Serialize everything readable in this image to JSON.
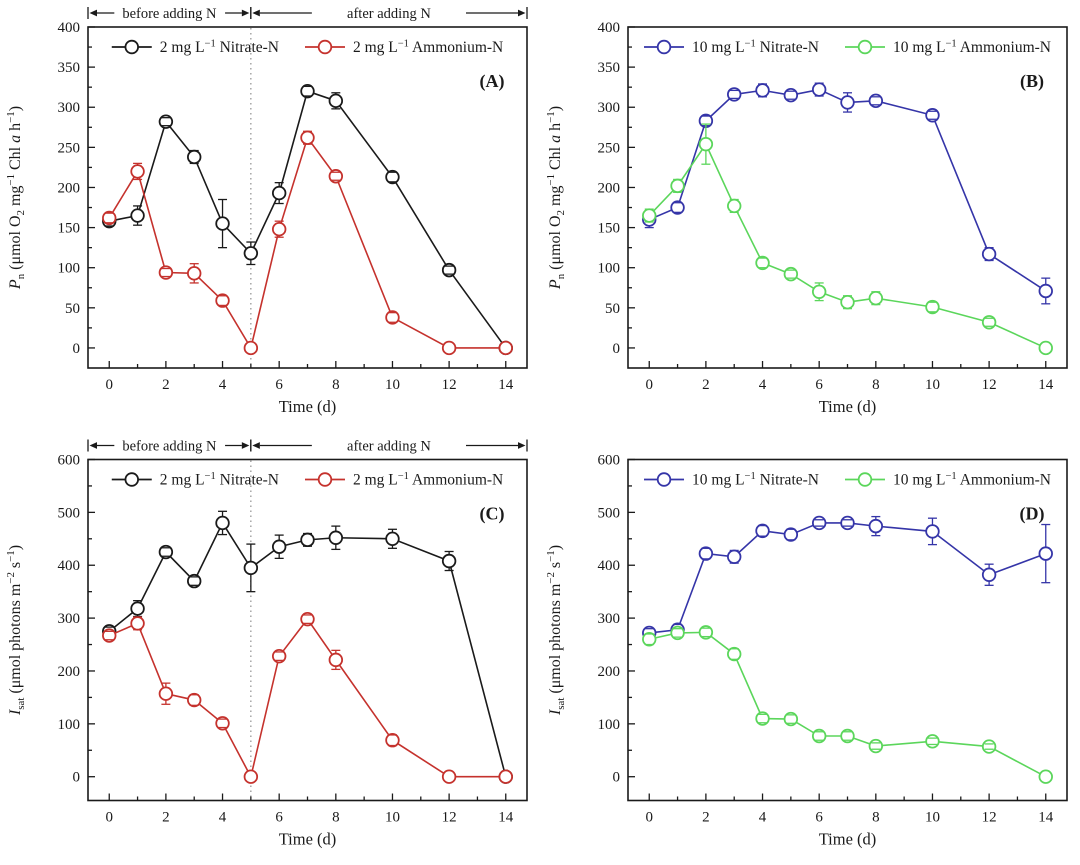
{
  "figure": {
    "background": "#ffffff",
    "panel_count": 4
  },
  "chart_data": [
    {
      "panel": "A",
      "panel_label": "(A)",
      "type": "line",
      "xlabel": "Time (d)",
      "ylabel_segments": [
        {
          "text": "P",
          "italic": true
        },
        {
          "text": "n",
          "sub": true
        },
        {
          "text": " (μmol O"
        },
        {
          "text": "2",
          "sub": true
        },
        {
          "text": " mg"
        },
        {
          "text": "−1",
          "sup": true
        },
        {
          "text": " Chl "
        },
        {
          "text": "a",
          "italic": true
        },
        {
          "text": " h"
        },
        {
          "text": "−1",
          "sup": true
        },
        {
          "text": ")"
        }
      ],
      "x": [
        0,
        1,
        2,
        3,
        4,
        5,
        6,
        7,
        8,
        10,
        12,
        14
      ],
      "xlim": [
        -0.75,
        14.75
      ],
      "ylim": [
        -25,
        400
      ],
      "x_major_step": 2,
      "x_minor_step": 1,
      "y_major_step": 50,
      "y_minor_step": 25,
      "grid": false,
      "legend_position": "top-center-inside",
      "annotation": {
        "before": "before adding N",
        "after": "after adding N",
        "divider_x": 5
      },
      "divider_x": 5,
      "series": [
        {
          "key": "nitrate",
          "color": "#1a1a1a",
          "name_segments": [
            {
              "text": "2 mg L"
            },
            {
              "text": "−1",
              "sup": true
            },
            {
              "text": " Nitrate-N"
            }
          ],
          "values": [
            158,
            165,
            282,
            238,
            155,
            118,
            193,
            320,
            308,
            213,
            97,
            0
          ],
          "errors": [
            6,
            12,
            5,
            8,
            30,
            14,
            13,
            6,
            10,
            6,
            5,
            0
          ]
        },
        {
          "key": "ammonium",
          "color": "#c5322d",
          "name_segments": [
            {
              "text": "2 mg L"
            },
            {
              "text": "−1",
              "sup": true
            },
            {
              "text": " Ammonium-N"
            }
          ],
          "values": [
            162,
            220,
            94,
            93,
            59,
            0,
            148,
            262,
            214,
            38,
            0,
            0
          ],
          "errors": [
            6,
            10,
            5,
            12,
            6,
            0,
            10,
            8,
            5,
            6,
            0,
            0
          ]
        }
      ]
    },
    {
      "panel": "B",
      "panel_label": "(B)",
      "type": "line",
      "xlabel": "Time (d)",
      "ylabel_segments": [
        {
          "text": "P",
          "italic": true
        },
        {
          "text": "n",
          "sub": true
        },
        {
          "text": " (μmol O"
        },
        {
          "text": "2",
          "sub": true
        },
        {
          "text": " mg"
        },
        {
          "text": "−1",
          "sup": true
        },
        {
          "text": " Chl "
        },
        {
          "text": "a",
          "italic": true
        },
        {
          "text": " h"
        },
        {
          "text": "−1",
          "sup": true
        },
        {
          "text": ")"
        }
      ],
      "x": [
        0,
        1,
        2,
        3,
        4,
        5,
        6,
        7,
        8,
        10,
        12,
        14
      ],
      "xlim": [
        -0.75,
        14.75
      ],
      "ylim": [
        -25,
        400
      ],
      "x_major_step": 2,
      "x_minor_step": 1,
      "y_major_step": 50,
      "y_minor_step": 25,
      "grid": false,
      "legend_position": "top-center-inside",
      "annotation": null,
      "divider_x": null,
      "series": [
        {
          "key": "nitrate",
          "color": "#3535a8",
          "name_segments": [
            {
              "text": "10 mg L"
            },
            {
              "text": "−1",
              "sup": true
            },
            {
              "text": " Nitrate-N"
            }
          ],
          "values": [
            160,
            175,
            283,
            316,
            321,
            315,
            322,
            306,
            308,
            290,
            117,
            71
          ],
          "errors": [
            10,
            6,
            6,
            5,
            8,
            5,
            8,
            12,
            5,
            5,
            8,
            16
          ]
        },
        {
          "key": "ammonium",
          "color": "#5bd65b",
          "name_segments": [
            {
              "text": "10 mg L"
            },
            {
              "text": "−1",
              "sup": true
            },
            {
              "text": " Ammonium-N"
            }
          ],
          "values": [
            165,
            202,
            254,
            177,
            106,
            92,
            70,
            57,
            62,
            51,
            32,
            0
          ],
          "errors": [
            8,
            8,
            25,
            8,
            6,
            5,
            11,
            8,
            8,
            6,
            5,
            0
          ]
        }
      ]
    },
    {
      "panel": "C",
      "panel_label": "(C)",
      "type": "line",
      "xlabel": "Time (d)",
      "ylabel_segments": [
        {
          "text": "I",
          "italic": true
        },
        {
          "text": "sat",
          "sub": true
        },
        {
          "text": " (μmol photons m"
        },
        {
          "text": "−2",
          "sup": true
        },
        {
          "text": " s"
        },
        {
          "text": "−1",
          "sup": true
        },
        {
          "text": ")"
        }
      ],
      "x": [
        0,
        1,
        2,
        3,
        4,
        5,
        6,
        7,
        8,
        10,
        12,
        14
      ],
      "xlim": [
        -0.75,
        14.75
      ],
      "ylim": [
        -45,
        600
      ],
      "x_major_step": 2,
      "x_minor_step": 1,
      "y_major_step": 100,
      "y_minor_step": 50,
      "grid": false,
      "legend_position": "top-center-inside",
      "annotation": {
        "before": "before adding N",
        "after": "after adding N",
        "divider_x": 5
      },
      "divider_x": 5,
      "series": [
        {
          "key": "nitrate",
          "color": "#1a1a1a",
          "name_segments": [
            {
              "text": "2 mg L"
            },
            {
              "text": "−1",
              "sup": true
            },
            {
              "text": " Nitrate-N"
            }
          ],
          "values": [
            275,
            318,
            425,
            370,
            480,
            395,
            435,
            448,
            452,
            450,
            408,
            0
          ],
          "errors": [
            8,
            15,
            8,
            8,
            22,
            45,
            22,
            12,
            22,
            18,
            18,
            0
          ]
        },
        {
          "key": "ammonium",
          "color": "#c5322d",
          "name_segments": [
            {
              "text": "2 mg L"
            },
            {
              "text": "−1",
              "sup": true
            },
            {
              "text": " Ammonium-N"
            }
          ],
          "values": [
            267,
            290,
            157,
            145,
            101,
            0,
            228,
            298,
            221,
            69,
            0,
            0
          ],
          "errors": [
            8,
            12,
            20,
            10,
            8,
            0,
            8,
            8,
            18,
            10,
            0,
            0
          ]
        }
      ]
    },
    {
      "panel": "D",
      "panel_label": "(D)",
      "type": "line",
      "xlabel": "Time (d)",
      "ylabel_segments": [
        {
          "text": "I",
          "italic": true
        },
        {
          "text": "sat",
          "sub": true
        },
        {
          "text": " (μmol photons m"
        },
        {
          "text": "−2",
          "sup": true
        },
        {
          "text": " s"
        },
        {
          "text": "−1",
          "sup": true
        },
        {
          "text": ")"
        }
      ],
      "x": [
        0,
        1,
        2,
        3,
        4,
        5,
        6,
        7,
        8,
        10,
        12,
        14
      ],
      "xlim": [
        -0.75,
        14.75
      ],
      "ylim": [
        -45,
        600
      ],
      "x_major_step": 2,
      "x_minor_step": 1,
      "y_major_step": 100,
      "y_minor_step": 50,
      "grid": false,
      "legend_position": "top-center-inside",
      "annotation": null,
      "divider_x": null,
      "series": [
        {
          "key": "nitrate",
          "color": "#3535a8",
          "name_segments": [
            {
              "text": "10 mg L"
            },
            {
              "text": "−1",
              "sup": true
            },
            {
              "text": " Nitrate-N"
            }
          ],
          "values": [
            272,
            278,
            422,
            416,
            465,
            458,
            480,
            480,
            474,
            464,
            382,
            422
          ],
          "errors": [
            8,
            10,
            10,
            12,
            10,
            10,
            6,
            6,
            18,
            25,
            20,
            55
          ]
        },
        {
          "key": "ammonium",
          "color": "#5bd65b",
          "name_segments": [
            {
              "text": "10 mg L"
            },
            {
              "text": "−1",
              "sup": true
            },
            {
              "text": " Ammonium-N"
            }
          ],
          "values": [
            260,
            272,
            273,
            232,
            110,
            109,
            77,
            77,
            58,
            67,
            57,
            0
          ],
          "errors": [
            10,
            8,
            8,
            10,
            8,
            8,
            8,
            8,
            6,
            6,
            5,
            0
          ]
        }
      ]
    }
  ],
  "style": {
    "axis_color": "#1a1a1a",
    "divider_line_color": "#8f8f8f",
    "marker_fill": "#ffffff"
  }
}
